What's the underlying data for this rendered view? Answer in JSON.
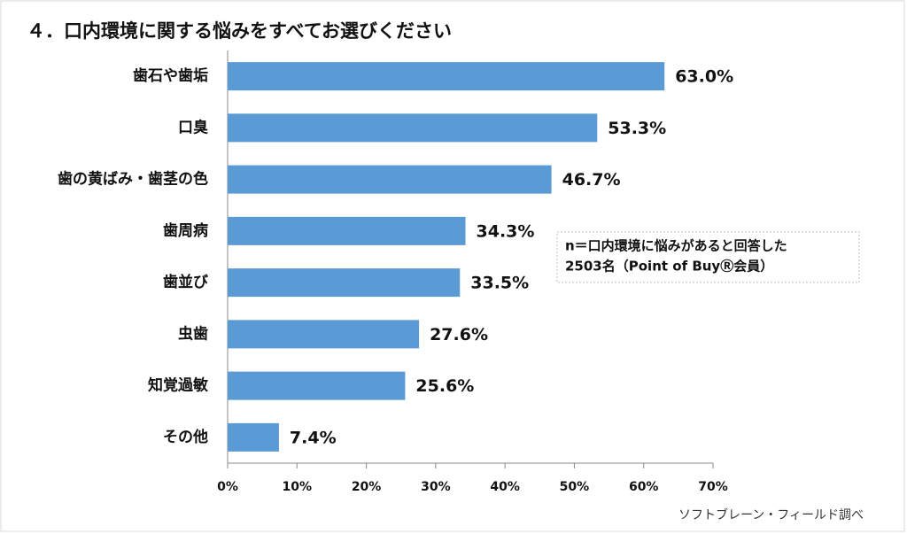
{
  "chart_data": {
    "type": "bar",
    "orientation": "horizontal",
    "title": "４．口内環境に関する悩みをすべてお選びください",
    "categories": [
      "歯石や歯垢",
      "口臭",
      "歯の黄ばみ・歯茎の色",
      "歯周病",
      "歯並び",
      "虫歯",
      "知覚過敏",
      "その他"
    ],
    "values": [
      63.0,
      53.3,
      46.7,
      34.3,
      33.5,
      27.6,
      25.6,
      7.4
    ],
    "value_labels": [
      "63.0%",
      "53.3%",
      "46.7%",
      "34.3%",
      "33.5%",
      "27.6%",
      "25.6%",
      "7.4%"
    ],
    "color": "#5b9bd5",
    "xlim": [
      0,
      70
    ],
    "xticks": [
      {
        "value": 0,
        "label": "0%"
      },
      {
        "value": 10,
        "label": "10%"
      },
      {
        "value": 20,
        "label": "20%"
      },
      {
        "value": 30,
        "label": "30%"
      },
      {
        "value": 40,
        "label": "40%"
      },
      {
        "value": 50,
        "label": "50%"
      },
      {
        "value": 60,
        "label": "60%"
      },
      {
        "value": 70,
        "label": "70%"
      }
    ],
    "note": [
      "n＝口内環境に悩みがあると回答した",
      "2503名（Point of BuyⓇ会員）"
    ],
    "source": "ソフトブレーン・フィールド調べ"
  }
}
